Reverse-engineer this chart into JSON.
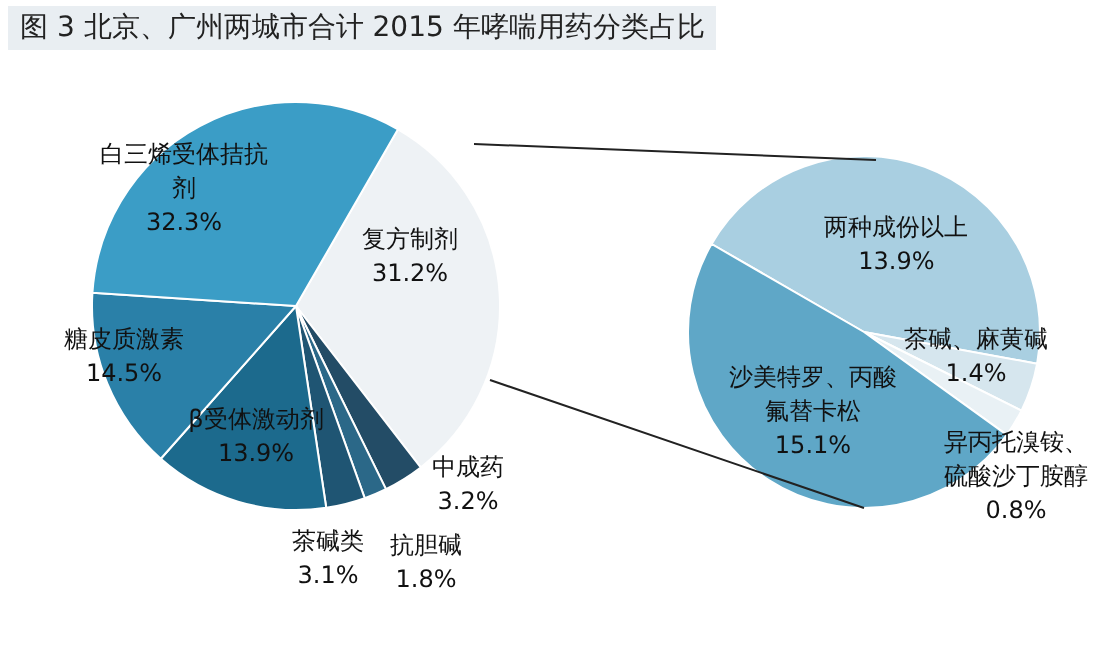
{
  "chart_data": [
    {
      "type": "pie",
      "title": "图 3  北京、广州两城市合计 2015 年哮喘用药分类占比",
      "categories": [
        "复方制剂",
        "中成药",
        "抗胆碱",
        "茶碱类",
        "β受体激动剂",
        "糖皮质激素",
        "白三烯受体拮抗剂"
      ],
      "values": [
        31.2,
        3.2,
        1.8,
        3.1,
        13.9,
        14.5,
        32.3
      ],
      "value_labels": [
        "31.2%",
        "3.2%",
        "1.8%",
        "3.1%",
        "13.9%",
        "14.5%",
        "32.3%"
      ],
      "colors": [
        "#eef2f5",
        "#234c66",
        "#2b6888",
        "#1f5573",
        "#1c6a8d",
        "#2a80a8",
        "#3b9dc6"
      ]
    },
    {
      "type": "pie",
      "categories": [
        "两种成份以上",
        "茶碱、麻黄碱",
        "异丙托溴铵、硫酸沙丁胺醇",
        "沙美特罗、丙酸氟替卡松"
      ],
      "values": [
        13.9,
        1.4,
        0.8,
        15.1
      ],
      "value_labels": [
        "13.9%",
        "1.4%",
        "0.8%",
        "15.1%"
      ],
      "colors": [
        "#a9cfe1",
        "#d6e6ee",
        "#e9f1f5",
        "#5fa7c7"
      ]
    }
  ]
}
